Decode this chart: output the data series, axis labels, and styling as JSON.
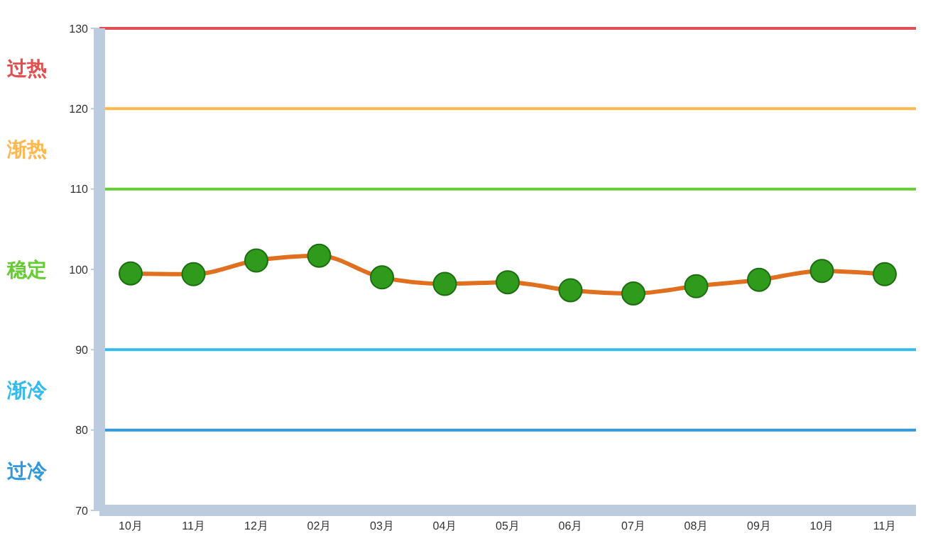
{
  "chart_data": {
    "type": "line",
    "categories": [
      "10月",
      "11月",
      "12月",
      "02月",
      "03月",
      "04月",
      "05月",
      "06月",
      "07月",
      "08月",
      "09月",
      "10月",
      "11月"
    ],
    "series": [
      {
        "color": "#e07020",
        "values": [
          99.5,
          99.4,
          101.1,
          101.7,
          99.0,
          98.2,
          98.4,
          97.4,
          97.0,
          97.9,
          98.7,
          99.8,
          99.4
        ]
      }
    ],
    "ylim": [
      70,
      130
    ],
    "yticks": [
      70,
      80,
      90,
      100,
      110,
      120,
      130
    ],
    "ref_lines": [
      {
        "axis": "y",
        "value": 130,
        "color": "#e05050"
      },
      {
        "axis": "y",
        "value": 120,
        "color": "#ffb84d"
      },
      {
        "axis": "y",
        "value": 110,
        "color": "#66cc33"
      },
      {
        "axis": "y",
        "value": 90,
        "color": "#33bbee"
      },
      {
        "axis": "y",
        "value": 80,
        "color": "#3399dd"
      }
    ],
    "annotations": [
      "过热",
      "渐热",
      "稳定",
      "渐冷",
      "过冷"
    ],
    "marker": "circle",
    "grid": false,
    "legend": false
  }
}
